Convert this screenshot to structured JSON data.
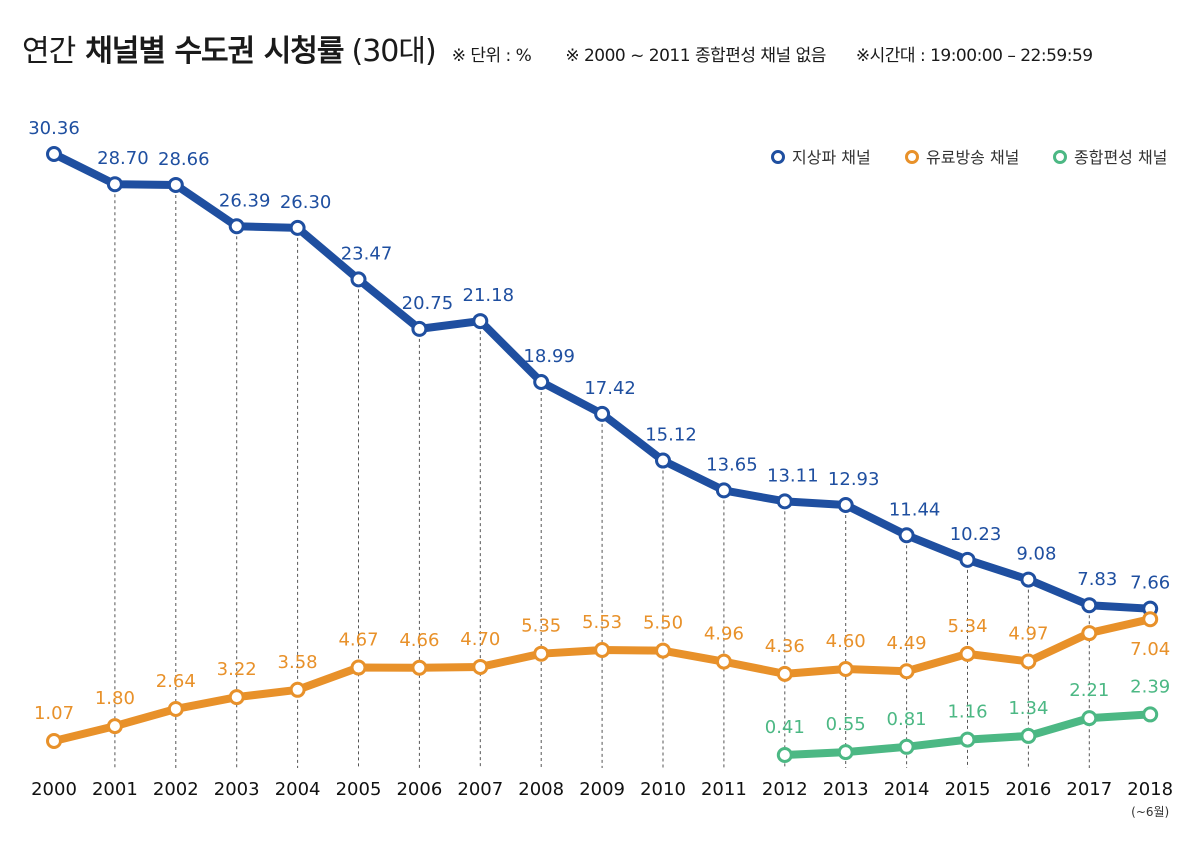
{
  "header": {
    "title_part1": "연간",
    "title_part2": "채널별 수도권 시청률",
    "title_part3": "(30대)",
    "note_unit": "※ 단위 : %",
    "note_range": "※ 2000 ~ 2011 종합편성 채널 없음",
    "note_time": "※시간대 : 19:00:00 – 22:59:59"
  },
  "chart_data": {
    "type": "line",
    "title": "연간 채널별 수도권 시청률 (30대)",
    "unit": "%",
    "categories": [
      "2000",
      "2001",
      "2002",
      "2003",
      "2004",
      "2005",
      "2006",
      "2007",
      "2008",
      "2009",
      "2010",
      "2011",
      "2012",
      "2013",
      "2014",
      "2015",
      "2016",
      "2017",
      "2018"
    ],
    "last_category_note": "(~6월)",
    "legend_position": "top-right",
    "grid": "vertical-dashed",
    "colors": {
      "terrestrial": "#1f4fa0",
      "paid": "#e8912a",
      "general": "#4cb884"
    },
    "series": [
      {
        "name": "지상파 채널",
        "key": "terrestrial",
        "values": [
          30.36,
          28.7,
          28.66,
          26.39,
          26.3,
          23.47,
          20.75,
          21.18,
          18.99,
          17.42,
          15.12,
          13.65,
          13.11,
          12.93,
          11.44,
          10.23,
          9.08,
          7.83,
          7.66
        ]
      },
      {
        "name": "유료방송 채널",
        "key": "paid",
        "values": [
          1.07,
          1.8,
          2.64,
          3.22,
          3.58,
          4.67,
          4.66,
          4.7,
          5.35,
          5.53,
          5.5,
          4.96,
          4.36,
          4.6,
          4.49,
          5.34,
          4.97,
          6.36,
          7.04
        ]
      },
      {
        "name": "종합편성 채널",
        "key": "general",
        "values": [
          null,
          null,
          null,
          null,
          null,
          null,
          null,
          null,
          null,
          null,
          null,
          null,
          0.41,
          0.55,
          0.81,
          1.16,
          1.34,
          2.21,
          2.39
        ]
      }
    ],
    "data_labels": {
      "terrestrial": [
        "30.36",
        "28.70",
        "28.66",
        "26.39",
        "26.30",
        "23.47",
        "20.75",
        "21.18",
        "18.99",
        "17.42",
        "15.12",
        "13.65",
        "13.11",
        "12.93",
        "11.44",
        "10.23",
        "9.08",
        "7.83",
        "7.66"
      ],
      "paid": [
        "1.07",
        "1.80",
        "2.64",
        "3.22",
        "3.58",
        "4.67",
        "4.66",
        "4.70",
        "5.35",
        "5.53",
        "5.50",
        "4.96",
        "4.36",
        "4.60",
        "4.49",
        "5.34",
        "4.97",
        "",
        "7.04"
      ],
      "general": [
        "",
        "",
        "",
        "",
        "",
        "",
        "",
        "",
        "",
        "",
        "",
        "",
        "0.41",
        "0.55",
        "0.81",
        "1.16",
        "1.34",
        "2.21",
        "2.39"
      ]
    }
  }
}
